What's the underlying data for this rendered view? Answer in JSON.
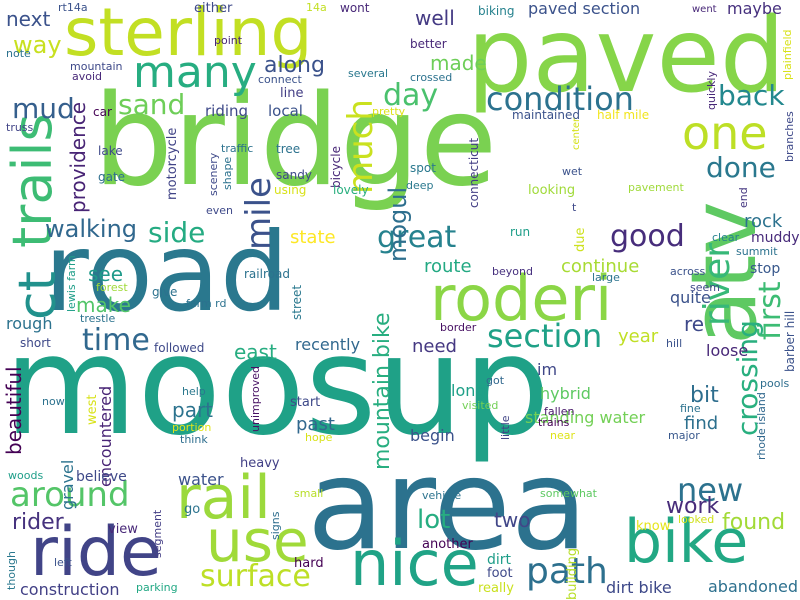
{
  "palette": [
    "#440154",
    "#482878",
    "#3e4989",
    "#31688e",
    "#26828e",
    "#1f9e89",
    "#35b779",
    "#6ece58",
    "#b5de2b",
    "#fde725"
  ],
  "words": [
    {
      "text": "moosup",
      "color": "#1fa187"
    },
    {
      "text": "bridge",
      "color": "#7ad151"
    },
    {
      "text": "road",
      "color": "#2a788e"
    },
    {
      "text": "paved",
      "color": "#86d549"
    },
    {
      "text": "area",
      "color": "#2c728e"
    },
    {
      "text": "sterling",
      "color": "#c2df23"
    },
    {
      "text": "atv",
      "color": "#5ec962"
    },
    {
      "text": "bike",
      "color": "#22a884"
    },
    {
      "text": "rail",
      "color": "#9bd93c"
    },
    {
      "text": "ride",
      "color": "#414487"
    },
    {
      "text": "use",
      "color": "#a0da39"
    },
    {
      "text": "nice",
      "color": "#20a386"
    },
    {
      "text": "roderi",
      "color": "#8bd646"
    },
    {
      "text": "many",
      "color": "#27ad81"
    },
    {
      "text": "trails",
      "color": "#3dbc74"
    },
    {
      "text": "ct",
      "color": "#21918c"
    },
    {
      "text": "condition",
      "color": "#2c728e"
    },
    {
      "text": "one",
      "color": "#bddf26"
    },
    {
      "text": "much",
      "color": "#cae11f"
    },
    {
      "text": "mile",
      "color": "#3b528b"
    },
    {
      "text": "sand",
      "color": "#6ece58"
    },
    {
      "text": "mud",
      "color": "#355f8d"
    },
    {
      "text": "day",
      "color": "#4ac16d"
    },
    {
      "text": "back",
      "color": "#23888e"
    },
    {
      "text": "done",
      "color": "#2a788e"
    },
    {
      "text": "good",
      "color": "#472d7b"
    },
    {
      "text": "great",
      "color": "#26828e"
    },
    {
      "text": "river",
      "color": "#37b878"
    },
    {
      "text": "first",
      "color": "#3dbc74"
    },
    {
      "text": "crossing",
      "color": "#29af7f"
    },
    {
      "text": "around",
      "color": "#54c568"
    },
    {
      "text": "surface",
      "color": "#bddf26"
    },
    {
      "text": "path",
      "color": "#2d708e"
    },
    {
      "text": "section",
      "color": "#1fa187"
    },
    {
      "text": "time",
      "color": "#31688e"
    },
    {
      "text": "side",
      "color": "#25ab82"
    },
    {
      "text": "walking",
      "color": "#31688e"
    },
    {
      "text": "way",
      "color": "#c8e020"
    },
    {
      "text": "next",
      "color": "#3b528b"
    },
    {
      "text": "mogul",
      "color": "#2e6f8e"
    },
    {
      "text": "mountain bike",
      "color": "#28ae80"
    },
    {
      "text": "new",
      "color": "#2c728e"
    },
    {
      "text": "work",
      "color": "#472c7a"
    },
    {
      "text": "found",
      "color": "#a2da37"
    },
    {
      "text": "rider",
      "color": "#46327e"
    },
    {
      "text": "lot",
      "color": "#27ad81"
    },
    {
      "text": "two",
      "color": "#404688"
    },
    {
      "text": "made",
      "color": "#6ece58"
    },
    {
      "text": "along",
      "color": "#3b528b"
    },
    {
      "text": "well",
      "color": "#443a83"
    },
    {
      "text": "paved section",
      "color": "#3b528b"
    },
    {
      "text": "maybe",
      "color": "#46307e"
    },
    {
      "text": "state",
      "color": "#fde725"
    },
    {
      "text": "route",
      "color": "#23a983"
    },
    {
      "text": "continue",
      "color": "#a8db34"
    },
    {
      "text": "providence",
      "color": "#482475"
    },
    {
      "text": "see",
      "color": "#1f9a8a"
    },
    {
      "text": "make",
      "color": "#52c569"
    },
    {
      "text": "rough",
      "color": "#2c728e"
    },
    {
      "text": "east",
      "color": "#27ad81"
    },
    {
      "text": "recently",
      "color": "#31688e"
    },
    {
      "text": "need",
      "color": "#453882"
    },
    {
      "text": "year",
      "color": "#c0df25"
    },
    {
      "text": "part",
      "color": "#2c738e"
    },
    {
      "text": "beautiful",
      "color": "#440154"
    },
    {
      "text": "bit",
      "color": "#2e6e8e"
    },
    {
      "text": "find",
      "color": "#2d708e"
    },
    {
      "text": "loose",
      "color": "#482878"
    },
    {
      "text": "re",
      "color": "#3e4989"
    },
    {
      "text": "quite",
      "color": "#3b528b"
    },
    {
      "text": "rock",
      "color": "#2c728e"
    },
    {
      "text": "stop",
      "color": "#38588c"
    },
    {
      "text": "muddy",
      "color": "#472a7a"
    },
    {
      "text": "hybrid",
      "color": "#5ec962"
    },
    {
      "text": "standing water",
      "color": "#73d056"
    },
    {
      "text": "im",
      "color": "#3f4788"
    },
    {
      "text": "long",
      "color": "#1fa088"
    },
    {
      "text": "past",
      "color": "#31688e"
    },
    {
      "text": "begin",
      "color": "#3b528b"
    },
    {
      "text": "encountered",
      "color": "#482475"
    },
    {
      "text": "gravel",
      "color": "#2c738e"
    },
    {
      "text": "water",
      "color": "#3b528b"
    },
    {
      "text": "believe",
      "color": "#3e4989"
    },
    {
      "text": "dirt bike",
      "color": "#3e4989"
    },
    {
      "text": "abandoned",
      "color": "#2d708e"
    },
    {
      "text": "construction",
      "color": "#424086"
    },
    {
      "text": "dirt",
      "color": "#1f9e89"
    },
    {
      "text": "foot",
      "color": "#3e4989"
    },
    {
      "text": "another",
      "color": "#440154"
    },
    {
      "text": "know",
      "color": "#e5e419"
    },
    {
      "text": "looked",
      "color": "#d0e11c"
    },
    {
      "text": "building",
      "color": "#b8de29"
    },
    {
      "text": "really",
      "color": "#cae11f"
    },
    {
      "text": "hard",
      "color": "#440154"
    },
    {
      "text": "heavy",
      "color": "#424086"
    },
    {
      "text": "view",
      "color": "#482878"
    },
    {
      "text": "go",
      "color": "#2c738e"
    },
    {
      "text": "signs",
      "color": "#2e6e8e"
    },
    {
      "text": "segment",
      "color": "#433e85"
    },
    {
      "text": "vehicle",
      "color": "#2c738e"
    },
    {
      "text": "somewhat",
      "color": "#5ec962"
    },
    {
      "text": "small",
      "color": "#b8de29"
    },
    {
      "text": "parking",
      "color": "#22a884"
    },
    {
      "text": "left",
      "color": "#3b528b"
    },
    {
      "text": "though",
      "color": "#2a788e"
    },
    {
      "text": "woods",
      "color": "#1f9e89"
    },
    {
      "text": "west",
      "color": "#d8e219"
    },
    {
      "text": "now",
      "color": "#2c728e"
    },
    {
      "text": "think",
      "color": "#2e6e8e"
    },
    {
      "text": "portion",
      "color": "#e2e418"
    },
    {
      "text": "help",
      "color": "#2a788e"
    },
    {
      "text": "hope",
      "color": "#d8e219"
    },
    {
      "text": "start",
      "color": "#3e4989"
    },
    {
      "text": "unimproved",
      "color": "#471164"
    },
    {
      "text": "visited",
      "color": "#73d056"
    },
    {
      "text": "got",
      "color": "#31688e"
    },
    {
      "text": "little",
      "color": "#414487"
    },
    {
      "text": "trains",
      "color": "#440154"
    },
    {
      "text": "near",
      "color": "#dde318"
    },
    {
      "text": "fallen",
      "color": "#48186a"
    },
    {
      "text": "major",
      "color": "#38588c"
    },
    {
      "text": "fine",
      "color": "#2c728e"
    },
    {
      "text": "pools",
      "color": "#2e6e8e"
    },
    {
      "text": "rhode island",
      "color": "#31688e"
    },
    {
      "text": "barber hill",
      "color": "#3b528b"
    },
    {
      "text": "hill",
      "color": "#3b528b"
    },
    {
      "text": "border",
      "color": "#471063"
    },
    {
      "text": "seem",
      "color": "#3e4989"
    },
    {
      "text": "across",
      "color": "#3b528b"
    },
    {
      "text": "large",
      "color": "#2c738e"
    },
    {
      "text": "summit",
      "color": "#2c728e"
    },
    {
      "text": "clear",
      "color": "#26828e"
    },
    {
      "text": "end",
      "color": "#453781"
    },
    {
      "text": "beyond",
      "color": "#46307e"
    },
    {
      "text": "run",
      "color": "#1f9e89"
    },
    {
      "text": "due",
      "color": "#cde11d"
    },
    {
      "text": "t",
      "color": "#3e4989"
    },
    {
      "text": "looking",
      "color": "#a0da39"
    },
    {
      "text": "pavement",
      "color": "#9fda3a"
    },
    {
      "text": "wet",
      "color": "#3b528b"
    },
    {
      "text": "center",
      "color": "#d5e21a"
    },
    {
      "text": "spot",
      "color": "#2a788e"
    },
    {
      "text": "deep",
      "color": "#2a788e"
    },
    {
      "text": "connecticut",
      "color": "#433e85"
    },
    {
      "text": "maintained",
      "color": "#3b528b"
    },
    {
      "text": "half mile",
      "color": "#f1e51d"
    },
    {
      "text": "quickly",
      "color": "#482878"
    },
    {
      "text": "branches",
      "color": "#3e4989"
    },
    {
      "text": "plainfield",
      "color": "#d8e219"
    },
    {
      "text": "went",
      "color": "#482878"
    },
    {
      "text": "biking",
      "color": "#26828e"
    },
    {
      "text": "better",
      "color": "#482878"
    },
    {
      "text": "crossed",
      "color": "#2c728e"
    },
    {
      "text": "several",
      "color": "#2a788e"
    },
    {
      "text": "pretty",
      "color": "#dde318"
    },
    {
      "text": "wont",
      "color": "#482878"
    },
    {
      "text": "14a",
      "color": "#c2df23"
    },
    {
      "text": "either",
      "color": "#3e4989"
    },
    {
      "text": "rt14a",
      "color": "#3b528b"
    },
    {
      "text": "note",
      "color": "#2c728e"
    },
    {
      "text": "point",
      "color": "#482878"
    },
    {
      "text": "mountain",
      "color": "#3e4989"
    },
    {
      "text": "avoid",
      "color": "#482878"
    },
    {
      "text": "connect",
      "color": "#3b528b"
    },
    {
      "text": "line",
      "color": "#433e85"
    },
    {
      "text": "local",
      "color": "#3b528b"
    },
    {
      "text": "riding",
      "color": "#3e4989"
    },
    {
      "text": "car",
      "color": "#440154"
    },
    {
      "text": "truss",
      "color": "#414487"
    },
    {
      "text": "motorcycle",
      "color": "#414487"
    },
    {
      "text": "lake",
      "color": "#3e4989"
    },
    {
      "text": "gate",
      "color": "#2e6e8e"
    },
    {
      "text": "scenery",
      "color": "#3e4989"
    },
    {
      "text": "traffic",
      "color": "#2c728e"
    },
    {
      "text": "tree",
      "color": "#2c728e"
    },
    {
      "text": "shape",
      "color": "#2c728e"
    },
    {
      "text": "sandy",
      "color": "#3e4989"
    },
    {
      "text": "bicycle",
      "color": "#482878"
    },
    {
      "text": "using",
      "color": "#d8e219"
    },
    {
      "text": "lovely",
      "color": "#29af7f"
    },
    {
      "text": "even",
      "color": "#3e4989"
    },
    {
      "text": "lewis farm",
      "color": "#1f9e89"
    },
    {
      "text": "forest",
      "color": "#a0da39"
    },
    {
      "text": "railroad",
      "color": "#2c728e"
    },
    {
      "text": "give",
      "color": "#2c728e"
    },
    {
      "text": "street",
      "color": "#2a788e"
    },
    {
      "text": "farm rd",
      "color": "#2c728e"
    },
    {
      "text": "trestle",
      "color": "#2c728e"
    },
    {
      "text": "short",
      "color": "#3e4989"
    },
    {
      "text": "followed",
      "color": "#3e4989"
    }
  ]
}
